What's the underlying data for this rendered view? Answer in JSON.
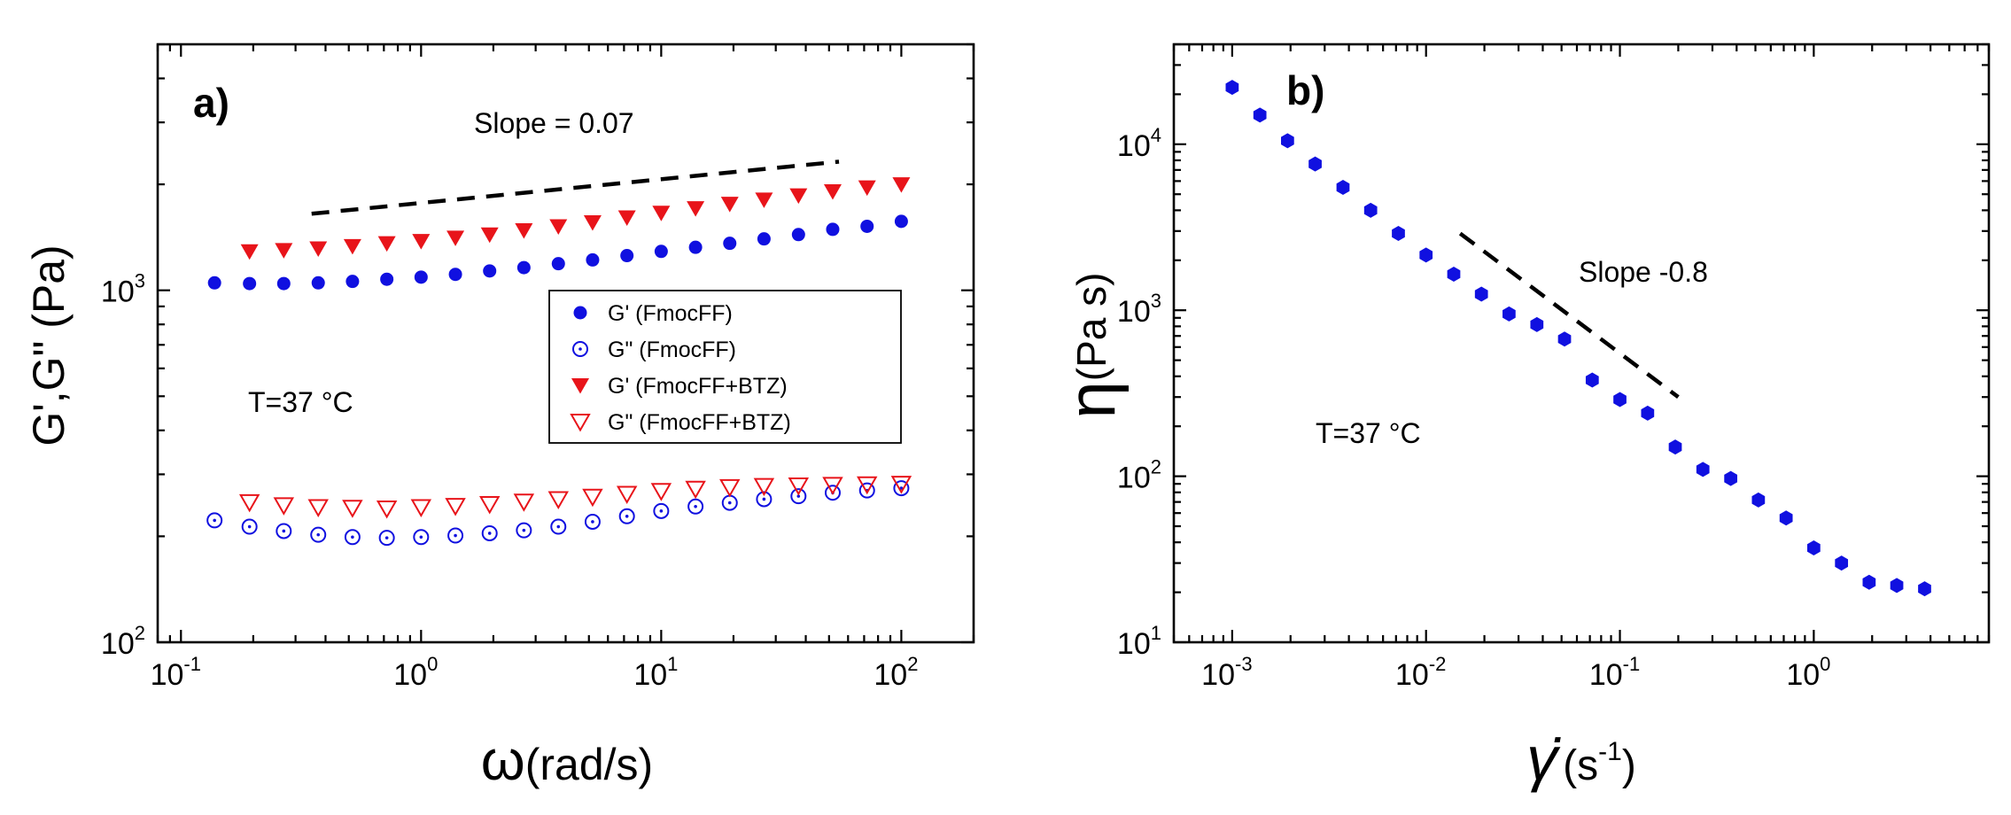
{
  "chart_data": [
    {
      "type": "scatter",
      "panel_label": "a)",
      "xlabel_symbol": "ω",
      "xlabel_rest": "(rad/s)",
      "ylabel": "G',G\" (Pa)",
      "xscale": "log",
      "yscale": "log",
      "xlim": [
        0.08,
        200
      ],
      "ylim": [
        100,
        5000
      ],
      "x_ticks": [
        {
          "value": 0.1,
          "base": "10",
          "exp": "-1"
        },
        {
          "value": 1,
          "base": "10",
          "exp": "0"
        },
        {
          "value": 10,
          "base": "10",
          "exp": "1"
        },
        {
          "value": 100,
          "base": "10",
          "exp": "2"
        }
      ],
      "y_ticks": [
        {
          "value": 100,
          "base": "10",
          "exp": "2"
        },
        {
          "value": 1000,
          "base": "10",
          "exp": "3"
        }
      ],
      "annotations": {
        "slope_text": "Slope = 0.07",
        "temperature": "T=37 °C"
      },
      "slope_line": {
        "x": [
          0.35,
          55
        ],
        "y": [
          1650,
          2320
        ]
      },
      "series": [
        {
          "name": "G' (FmocFF)",
          "marker": "filled-circle",
          "color": "#1010e0",
          "x": [
            0.138,
            0.193,
            0.268,
            0.373,
            0.518,
            0.72,
            1.0,
            1.39,
            1.93,
            2.68,
            3.73,
            5.18,
            7.2,
            10,
            13.9,
            19.3,
            26.8,
            37.3,
            51.8,
            72,
            100
          ],
          "y": [
            1050,
            1045,
            1045,
            1050,
            1060,
            1075,
            1090,
            1110,
            1135,
            1160,
            1190,
            1220,
            1255,
            1290,
            1325,
            1360,
            1400,
            1440,
            1490,
            1520,
            1570
          ]
        },
        {
          "name": "G\" (FmocFF)",
          "marker": "dotted-circle",
          "color": "#1010e0",
          "x": [
            0.138,
            0.193,
            0.268,
            0.373,
            0.518,
            0.72,
            1.0,
            1.39,
            1.93,
            2.68,
            3.73,
            5.18,
            7.2,
            10,
            13.9,
            19.3,
            26.8,
            37.3,
            51.8,
            72,
            100
          ],
          "y": [
            222,
            213,
            207,
            202,
            199,
            198,
            199,
            201,
            204,
            208,
            213,
            220,
            228,
            236,
            243,
            249,
            255,
            260,
            266,
            270,
            274
          ]
        },
        {
          "name": "G' (FmocFF+BTZ)",
          "marker": "filled-triangle-down",
          "color": "#e8141a",
          "x": [
            0.193,
            0.268,
            0.373,
            0.518,
            0.72,
            1.0,
            1.39,
            1.93,
            2.68,
            3.73,
            5.18,
            7.2,
            10,
            13.9,
            19.3,
            26.8,
            37.3,
            51.8,
            72,
            100
          ],
          "y": [
            1290,
            1300,
            1315,
            1335,
            1360,
            1380,
            1410,
            1440,
            1480,
            1520,
            1560,
            1610,
            1660,
            1710,
            1760,
            1810,
            1860,
            1910,
            1960,
            2000
          ]
        },
        {
          "name": "G\" (FmocFF+BTZ)",
          "marker": "open-triangle-down",
          "color": "#e8141a",
          "x": [
            0.193,
            0.268,
            0.373,
            0.518,
            0.72,
            1.0,
            1.39,
            1.93,
            2.68,
            3.73,
            5.18,
            7.2,
            10,
            13.9,
            19.3,
            26.8,
            37.3,
            51.8,
            72,
            100
          ],
          "y": [
            250,
            245,
            242,
            241,
            240,
            242,
            244,
            247,
            251,
            255,
            259,
            264,
            269,
            273,
            276,
            278,
            279,
            280,
            281,
            282
          ]
        }
      ]
    },
    {
      "type": "scatter",
      "panel_label": "b)",
      "xlabel_symbol": "γ̇",
      "xlabel_rest": "(s",
      "xlabel_exp": "-1",
      "xlabel_close": ")",
      "ylabel_symbol": "η",
      "ylabel_rest": "(Pa s)",
      "xscale": "log",
      "yscale": "log",
      "xlim": [
        0.0005,
        8
      ],
      "ylim": [
        10,
        40000
      ],
      "x_ticks": [
        {
          "value": 0.001,
          "base": "10",
          "exp": "-3"
        },
        {
          "value": 0.01,
          "base": "10",
          "exp": "-2"
        },
        {
          "value": 0.1,
          "base": "10",
          "exp": "-1"
        },
        {
          "value": 1,
          "base": "10",
          "exp": "0"
        }
      ],
      "y_ticks": [
        {
          "value": 10,
          "base": "10",
          "exp": "1"
        },
        {
          "value": 100,
          "base": "10",
          "exp": "2"
        },
        {
          "value": 1000,
          "base": "10",
          "exp": "3"
        },
        {
          "value": 10000,
          "base": "10",
          "exp": "4"
        }
      ],
      "annotations": {
        "slope_text": "Slope -0.8",
        "temperature": "T=37 °C"
      },
      "slope_line": {
        "x": [
          0.015,
          0.2
        ],
        "y": [
          2900,
          300
        ]
      },
      "series": [
        {
          "name": "η",
          "marker": "filled-hexagon",
          "color": "#1010e0",
          "x": [
            0.001,
            0.00139,
            0.00193,
            0.00268,
            0.00373,
            0.00518,
            0.0072,
            0.01,
            0.0139,
            0.0193,
            0.0268,
            0.0373,
            0.0518,
            0.072,
            0.1,
            0.139,
            0.193,
            0.268,
            0.373,
            0.518,
            0.72,
            1.0,
            1.39,
            1.93,
            2.68,
            3.73
          ],
          "y": [
            22000,
            15000,
            10500,
            7600,
            5500,
            4000,
            2900,
            2150,
            1650,
            1250,
            950,
            820,
            670,
            380,
            290,
            240,
            150,
            110,
            97,
            72,
            56,
            37,
            30,
            23,
            22,
            21
          ]
        }
      ]
    }
  ]
}
